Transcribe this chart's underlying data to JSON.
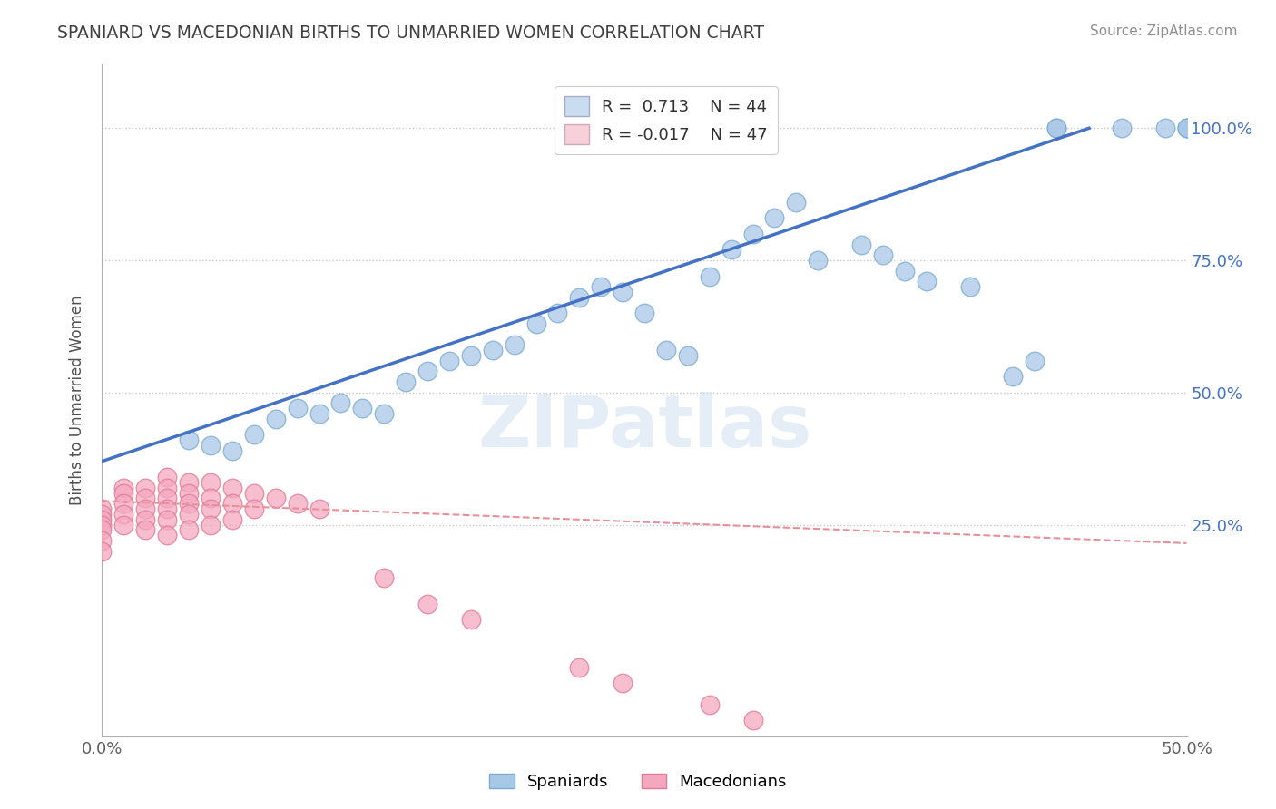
{
  "title": "SPANIARD VS MACEDONIAN BIRTHS TO UNMARRIED WOMEN CORRELATION CHART",
  "source": "Source: ZipAtlas.com",
  "ylabel": "Births to Unmarried Women",
  "xlim": [
    0.0,
    0.5
  ],
  "ylim": [
    -0.15,
    1.12
  ],
  "yticks_right": [
    0.25,
    0.5,
    0.75,
    1.0
  ],
  "ytick_right_labels": [
    "25.0%",
    "50.0%",
    "75.0%",
    "100.0%"
  ],
  "spaniard_color": "#a8c8e8",
  "macedonian_color": "#f4a8c0",
  "spaniard_edge": "#7aaace",
  "macedonian_edge": "#e07898",
  "blue_line_color": "#4472c4",
  "pink_line_color": "#e8909a",
  "legend_blue_fill": "#c8ddf0",
  "legend_pink_fill": "#f8d0da",
  "R_blue": 0.713,
  "N_blue": 44,
  "R_pink": -0.017,
  "N_pink": 47,
  "title_color": "#404040",
  "watermark_text": "ZIPatlas",
  "background": "#ffffff",
  "grid_color": "#c8c8c8",
  "spaniards_x": [
    0.04,
    0.05,
    0.06,
    0.07,
    0.08,
    0.09,
    0.1,
    0.11,
    0.12,
    0.13,
    0.14,
    0.15,
    0.16,
    0.17,
    0.18,
    0.19,
    0.2,
    0.21,
    0.22,
    0.23,
    0.24,
    0.25,
    0.26,
    0.27,
    0.28,
    0.29,
    0.3,
    0.31,
    0.32,
    0.33,
    0.35,
    0.36,
    0.37,
    0.38,
    0.4,
    0.42,
    0.43,
    0.44,
    0.44,
    0.47,
    0.49,
    0.5,
    0.5,
    0.5
  ],
  "spaniards_y": [
    0.41,
    0.4,
    0.39,
    0.42,
    0.45,
    0.47,
    0.46,
    0.48,
    0.47,
    0.46,
    0.52,
    0.54,
    0.56,
    0.57,
    0.58,
    0.59,
    0.63,
    0.65,
    0.68,
    0.7,
    0.69,
    0.65,
    0.58,
    0.57,
    0.72,
    0.77,
    0.8,
    0.83,
    0.86,
    0.75,
    0.78,
    0.76,
    0.73,
    0.71,
    0.7,
    0.53,
    0.56,
    1.0,
    1.0,
    1.0,
    1.0,
    1.0,
    1.0,
    1.0
  ],
  "macedonians_x": [
    0.0,
    0.0,
    0.0,
    0.0,
    0.0,
    0.0,
    0.0,
    0.01,
    0.01,
    0.01,
    0.01,
    0.01,
    0.02,
    0.02,
    0.02,
    0.02,
    0.02,
    0.03,
    0.03,
    0.03,
    0.03,
    0.03,
    0.03,
    0.04,
    0.04,
    0.04,
    0.04,
    0.04,
    0.05,
    0.05,
    0.05,
    0.05,
    0.06,
    0.06,
    0.06,
    0.07,
    0.07,
    0.08,
    0.09,
    0.1,
    0.13,
    0.15,
    0.17,
    0.22,
    0.24,
    0.28,
    0.3
  ],
  "macedonians_y": [
    0.28,
    0.27,
    0.26,
    0.25,
    0.24,
    0.22,
    0.2,
    0.32,
    0.31,
    0.29,
    0.27,
    0.25,
    0.32,
    0.3,
    0.28,
    0.26,
    0.24,
    0.34,
    0.32,
    0.3,
    0.28,
    0.26,
    0.23,
    0.33,
    0.31,
    0.29,
    0.27,
    0.24,
    0.33,
    0.3,
    0.28,
    0.25,
    0.32,
    0.29,
    0.26,
    0.31,
    0.28,
    0.3,
    0.29,
    0.28,
    0.15,
    0.1,
    0.07,
    -0.02,
    -0.05,
    -0.09,
    -0.12
  ]
}
